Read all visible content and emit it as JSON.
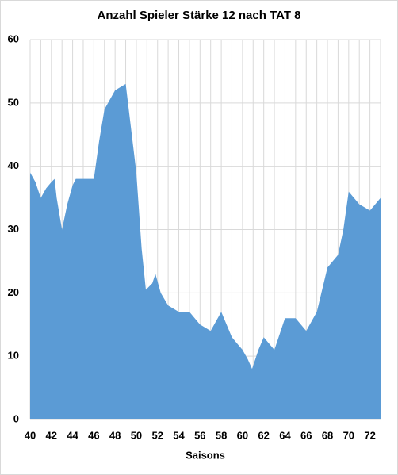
{
  "chart_data": {
    "type": "area",
    "title": "Anzahl Spieler Stärke 12 nach TAT 8",
    "x_label": "Saisons",
    "x": [
      40,
      40.5,
      41,
      41.5,
      42,
      42.3,
      42.5,
      43,
      43.5,
      44,
      44.3,
      45,
      46,
      46.5,
      47,
      47.5,
      48,
      48.5,
      49,
      49.5,
      50,
      50.5,
      50.9,
      51.5,
      51.8,
      52.3,
      53,
      53.5,
      54,
      55,
      55.5,
      56,
      56.5,
      57,
      57.5,
      58,
      58.5,
      59,
      59.5,
      60,
      60.5,
      60.9,
      61.5,
      62,
      62.5,
      63,
      63.5,
      64,
      64.5,
      65,
      65.5,
      66,
      66.5,
      67,
      67.5,
      68,
      68.5,
      69,
      69.5,
      70,
      70.5,
      71,
      71.5,
      72,
      72.5,
      73
    ],
    "values": [
      39,
      37.5,
      35,
      36.5,
      37.5,
      38,
      35,
      30,
      34,
      37,
      38,
      38,
      38,
      44,
      49,
      50.5,
      52,
      52.5,
      53,
      46,
      39,
      27,
      20.5,
      21.5,
      23,
      20,
      18,
      17.5,
      17,
      17,
      16,
      15,
      14.5,
      14,
      15.5,
      17,
      15,
      13,
      12,
      11,
      9.5,
      8,
      11,
      13,
      12,
      11,
      13.5,
      16,
      16,
      16,
      15,
      14,
      15.5,
      17,
      20.5,
      24,
      25,
      26,
      30,
      36,
      35,
      34,
      33.5,
      33,
      34,
      35
    ],
    "color": "#5b9bd5",
    "xlim": [
      40,
      73
    ],
    "xticks": [
      40,
      42,
      44,
      46,
      48,
      50,
      52,
      54,
      56,
      58,
      60,
      62,
      64,
      66,
      68,
      70,
      72
    ],
    "x_minor_ticks": [
      41,
      43,
      45,
      47,
      49,
      51,
      53,
      55,
      57,
      59,
      61,
      63,
      65,
      67,
      69,
      71,
      73
    ],
    "ylim": [
      0,
      60
    ],
    "yticks": [
      0,
      10,
      20,
      30,
      40,
      50,
      60
    ],
    "grid": true
  }
}
